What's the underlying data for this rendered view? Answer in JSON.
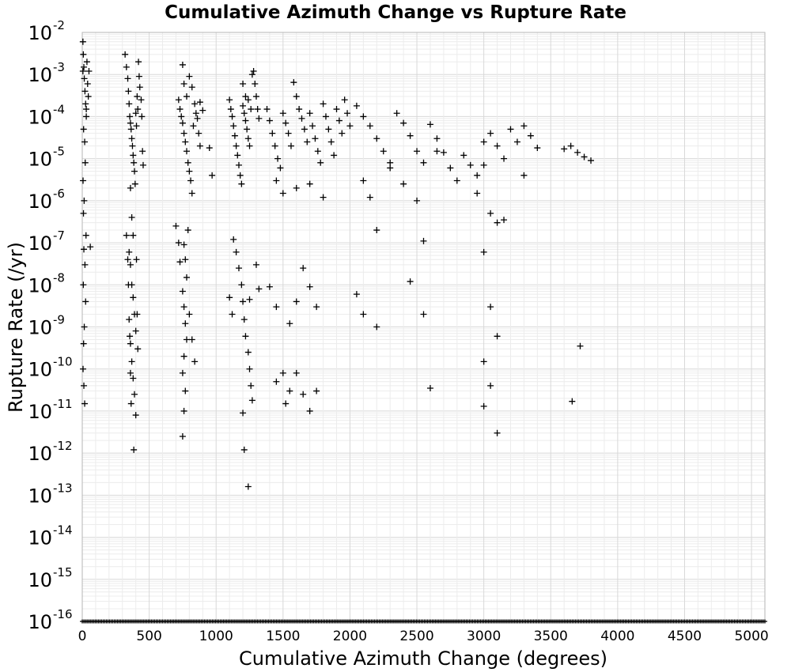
{
  "chart_data": {
    "type": "scatter",
    "title": "Cumulative Azimuth Change vs Rupture Rate",
    "xlabel": "Cumulative Azimuth Change (degrees)",
    "ylabel": "Rupture Rate (/yr)",
    "xlim": [
      0,
      5100
    ],
    "ylim": [
      1e-16,
      0.01
    ],
    "y_scale": "log",
    "grid": true,
    "marker": "plus",
    "marker_color": "#000000",
    "x_ticks": [
      "0",
      "500",
      "1000",
      "1500",
      "2000",
      "2500",
      "3000",
      "3500",
      "4000",
      "4500",
      "5000"
    ],
    "y_ticks": [
      {
        "base": "10",
        "exp": "-2"
      },
      {
        "base": "10",
        "exp": "-3"
      },
      {
        "base": "10",
        "exp": "-4"
      },
      {
        "base": "10",
        "exp": "-5"
      },
      {
        "base": "10",
        "exp": "-6"
      },
      {
        "base": "10",
        "exp": "-7"
      },
      {
        "base": "10",
        "exp": "-8"
      },
      {
        "base": "10",
        "exp": "-9"
      },
      {
        "base": "10",
        "exp": "-10"
      },
      {
        "base": "10",
        "exp": "-11"
      },
      {
        "base": "10",
        "exp": "-12"
      },
      {
        "base": "10",
        "exp": "-13"
      },
      {
        "base": "10",
        "exp": "-14"
      },
      {
        "base": "10",
        "exp": "-15"
      },
      {
        "base": "10",
        "exp": "-16"
      }
    ],
    "series": [
      {
        "points": [
          [
            5,
            0.006
          ],
          [
            8,
            0.003
          ],
          [
            12,
            0.0015
          ],
          [
            15,
            0.0008
          ],
          [
            20,
            0.0004
          ],
          [
            25,
            0.0002
          ],
          [
            30,
            0.0001
          ],
          [
            10,
            5e-05
          ],
          [
            18,
            2.5e-05
          ],
          [
            22,
            8e-06
          ],
          [
            6,
            3e-06
          ],
          [
            14,
            1e-06
          ],
          [
            9,
            5e-07
          ],
          [
            28,
            1.5e-07
          ],
          [
            12,
            7e-08
          ],
          [
            20,
            3e-08
          ],
          [
            8,
            1e-08
          ],
          [
            25,
            4e-09
          ],
          [
            15,
            1e-09
          ],
          [
            10,
            4e-10
          ],
          [
            6,
            1e-10
          ],
          [
            12,
            4e-11
          ],
          [
            18,
            1.5e-11
          ],
          [
            5,
            0.0012
          ],
          [
            35,
            0.002
          ],
          [
            40,
            0.0006
          ],
          [
            45,
            0.0003
          ],
          [
            50,
            0.0012
          ],
          [
            30,
            0.00015
          ],
          [
            60,
            8e-08
          ],
          [
            320,
            0.003
          ],
          [
            330,
            0.0015
          ],
          [
            340,
            0.0008
          ],
          [
            345,
            0.0004
          ],
          [
            350,
            0.0002
          ],
          [
            355,
            0.0001
          ],
          [
            360,
            7e-05
          ],
          [
            365,
            5e-05
          ],
          [
            370,
            3e-05
          ],
          [
            375,
            2e-05
          ],
          [
            380,
            1.2e-05
          ],
          [
            385,
            8e-06
          ],
          [
            390,
            5e-06
          ],
          [
            395,
            2.5e-06
          ],
          [
            400,
            0.00012
          ],
          [
            405,
            6e-05
          ],
          [
            410,
            0.0003
          ],
          [
            415,
            0.00015
          ],
          [
            420,
            0.002
          ],
          [
            425,
            0.0009
          ],
          [
            430,
            0.0005
          ],
          [
            440,
            0.00025
          ],
          [
            445,
            0.0001
          ],
          [
            450,
            1.5e-05
          ],
          [
            455,
            7e-06
          ],
          [
            360,
            2e-06
          ],
          [
            370,
            4e-07
          ],
          [
            380,
            1.5e-07
          ],
          [
            350,
            6e-08
          ],
          [
            360,
            3e-08
          ],
          [
            370,
            1e-08
          ],
          [
            380,
            5e-09
          ],
          [
            390,
            2e-09
          ],
          [
            400,
            8e-10
          ],
          [
            360,
            4e-10
          ],
          [
            370,
            1.5e-10
          ],
          [
            380,
            6e-11
          ],
          [
            390,
            2.5e-11
          ],
          [
            400,
            8e-12
          ],
          [
            385,
            1.2e-12
          ],
          [
            330,
            1.5e-07
          ],
          [
            340,
            4e-08
          ],
          [
            345,
            1e-08
          ],
          [
            350,
            1.5e-09
          ],
          [
            355,
            6e-10
          ],
          [
            360,
            8e-11
          ],
          [
            365,
            1.5e-11
          ],
          [
            405,
            4e-08
          ],
          [
            410,
            2e-09
          ],
          [
            415,
            3e-10
          ],
          [
            720,
            0.00025
          ],
          [
            730,
            0.00015
          ],
          [
            740,
            0.0001
          ],
          [
            750,
            7e-05
          ],
          [
            760,
            4e-05
          ],
          [
            770,
            2.5e-05
          ],
          [
            780,
            1.5e-05
          ],
          [
            790,
            8e-06
          ],
          [
            800,
            5e-06
          ],
          [
            810,
            3e-06
          ],
          [
            820,
            1.5e-06
          ],
          [
            830,
            6e-05
          ],
          [
            840,
            0.0002
          ],
          [
            850,
            0.00012
          ],
          [
            860,
            9e-05
          ],
          [
            870,
            4e-05
          ],
          [
            880,
            2e-05
          ],
          [
            750,
            0.0017
          ],
          [
            800,
            0.0009
          ],
          [
            820,
            0.0005
          ],
          [
            760,
            0.0006
          ],
          [
            780,
            0.0003
          ],
          [
            790,
            2e-07
          ],
          [
            760,
            9e-08
          ],
          [
            770,
            4e-08
          ],
          [
            780,
            1.5e-08
          ],
          [
            750,
            7e-09
          ],
          [
            760,
            3e-09
          ],
          [
            770,
            1.2e-09
          ],
          [
            780,
            5e-10
          ],
          [
            760,
            2e-10
          ],
          [
            750,
            8e-11
          ],
          [
            770,
            3e-11
          ],
          [
            760,
            1e-11
          ],
          [
            750,
            2.5e-12
          ],
          [
            800,
            2e-09
          ],
          [
            820,
            5e-10
          ],
          [
            840,
            1.5e-10
          ],
          [
            700,
            2.5e-07
          ],
          [
            720,
            1e-07
          ],
          [
            730,
            3.5e-08
          ],
          [
            880,
            0.00022
          ],
          [
            900,
            0.00014
          ],
          [
            950,
            1.8e-05
          ],
          [
            970,
            4e-06
          ],
          [
            1100,
            0.00025
          ],
          [
            1110,
            0.00015
          ],
          [
            1120,
            0.0001
          ],
          [
            1130,
            6e-05
          ],
          [
            1140,
            3.5e-05
          ],
          [
            1150,
            2e-05
          ],
          [
            1160,
            1.2e-05
          ],
          [
            1170,
            7e-06
          ],
          [
            1180,
            4e-06
          ],
          [
            1190,
            2.5e-06
          ],
          [
            1200,
            0.00018
          ],
          [
            1210,
            0.00012
          ],
          [
            1220,
            8e-05
          ],
          [
            1230,
            5e-05
          ],
          [
            1240,
            3e-05
          ],
          [
            1250,
            2e-05
          ],
          [
            1260,
            0.00015
          ],
          [
            1270,
            0.001
          ],
          [
            1280,
            0.0012
          ],
          [
            1290,
            0.0006
          ],
          [
            1300,
            0.0003
          ],
          [
            1310,
            0.00015
          ],
          [
            1320,
            9e-05
          ],
          [
            1200,
            0.0006
          ],
          [
            1220,
            0.0003
          ],
          [
            1240,
            0.00025
          ],
          [
            1130,
            1.2e-07
          ],
          [
            1150,
            6e-08
          ],
          [
            1170,
            2.5e-08
          ],
          [
            1190,
            1e-08
          ],
          [
            1200,
            4e-09
          ],
          [
            1210,
            1.5e-09
          ],
          [
            1220,
            6e-10
          ],
          [
            1240,
            2.5e-10
          ],
          [
            1250,
            1e-10
          ],
          [
            1260,
            4e-11
          ],
          [
            1270,
            1.8e-11
          ],
          [
            1200,
            9e-12
          ],
          [
            1210,
            1.2e-12
          ],
          [
            1240,
            1.6e-13
          ],
          [
            1100,
            5e-09
          ],
          [
            1120,
            2e-09
          ],
          [
            1250,
            4.5e-09
          ],
          [
            1300,
            3e-08
          ],
          [
            1320,
            8e-09
          ],
          [
            1380,
            0.00015
          ],
          [
            1400,
            8e-05
          ],
          [
            1420,
            4e-05
          ],
          [
            1440,
            2e-05
          ],
          [
            1460,
            1e-05
          ],
          [
            1480,
            6e-06
          ],
          [
            1500,
            0.00012
          ],
          [
            1520,
            7e-05
          ],
          [
            1540,
            4e-05
          ],
          [
            1560,
            2e-05
          ],
          [
            1580,
            0.00065
          ],
          [
            1600,
            0.0003
          ],
          [
            1620,
            0.00015
          ],
          [
            1640,
            9e-05
          ],
          [
            1660,
            5e-05
          ],
          [
            1680,
            2.5e-05
          ],
          [
            1700,
            0.00012
          ],
          [
            1720,
            6e-05
          ],
          [
            1740,
            3e-05
          ],
          [
            1760,
            1.5e-05
          ],
          [
            1780,
            8e-06
          ],
          [
            1800,
            0.0002
          ],
          [
            1820,
            0.0001
          ],
          [
            1840,
            5e-05
          ],
          [
            1860,
            2.5e-05
          ],
          [
            1880,
            1.2e-05
          ],
          [
            1900,
            0.00015
          ],
          [
            1920,
            8e-05
          ],
          [
            1940,
            4e-05
          ],
          [
            1960,
            0.00025
          ],
          [
            1980,
            0.00012
          ],
          [
            2000,
            6e-05
          ],
          [
            1450,
            3e-06
          ],
          [
            1500,
            1.5e-06
          ],
          [
            1600,
            2e-06
          ],
          [
            1700,
            2.5e-06
          ],
          [
            1800,
            1.2e-06
          ],
          [
            1400,
            9e-09
          ],
          [
            1450,
            3e-09
          ],
          [
            1550,
            1.2e-09
          ],
          [
            1600,
            4e-09
          ],
          [
            1650,
            2.5e-08
          ],
          [
            1700,
            9e-09
          ],
          [
            1750,
            3e-09
          ],
          [
            1500,
            8e-11
          ],
          [
            1550,
            3e-11
          ],
          [
            1600,
            8e-11
          ],
          [
            1650,
            2.5e-11
          ],
          [
            1700,
            1e-11
          ],
          [
            1750,
            3e-11
          ],
          [
            1450,
            5e-11
          ],
          [
            1520,
            1.5e-11
          ],
          [
            2050,
            0.00018
          ],
          [
            2100,
            0.0001
          ],
          [
            2150,
            6e-05
          ],
          [
            2200,
            3e-05
          ],
          [
            2250,
            1.5e-05
          ],
          [
            2300,
            8e-06
          ],
          [
            2350,
            0.00012
          ],
          [
            2400,
            7e-05
          ],
          [
            2450,
            3.5e-05
          ],
          [
            2500,
            1.5e-05
          ],
          [
            2550,
            8e-06
          ],
          [
            2600,
            6.5e-05
          ],
          [
            2650,
            3e-05
          ],
          [
            2700,
            1.4e-05
          ],
          [
            2750,
            6e-06
          ],
          [
            2800,
            3e-06
          ],
          [
            2100,
            3e-06
          ],
          [
            2150,
            1.2e-06
          ],
          [
            2200,
            2e-07
          ],
          [
            2300,
            6e-06
          ],
          [
            2400,
            2.5e-06
          ],
          [
            2500,
            1e-06
          ],
          [
            2550,
            1.1e-07
          ],
          [
            2050,
            6e-09
          ],
          [
            2100,
            2e-09
          ],
          [
            2200,
            1e-09
          ],
          [
            2450,
            1.2e-08
          ],
          [
            2550,
            2e-09
          ],
          [
            2600,
            3.5e-11
          ],
          [
            2650,
            1.5e-05
          ],
          [
            2850,
            1.2e-05
          ],
          [
            2900,
            7e-06
          ],
          [
            2950,
            4e-06
          ],
          [
            3000,
            2.5e-05
          ],
          [
            3050,
            4e-05
          ],
          [
            3100,
            2e-05
          ],
          [
            3150,
            1e-05
          ],
          [
            3200,
            5e-05
          ],
          [
            3250,
            2.5e-05
          ],
          [
            3300,
            6e-05
          ],
          [
            3350,
            3.5e-05
          ],
          [
            3400,
            1.8e-05
          ],
          [
            2950,
            1.5e-06
          ],
          [
            3000,
            7e-06
          ],
          [
            3050,
            5e-07
          ],
          [
            3100,
            3e-07
          ],
          [
            3150,
            3.5e-07
          ],
          [
            3000,
            6e-08
          ],
          [
            3050,
            3e-09
          ],
          [
            3100,
            6e-10
          ],
          [
            3000,
            1.5e-10
          ],
          [
            3050,
            4e-11
          ],
          [
            3000,
            1.3e-11
          ],
          [
            3100,
            3e-12
          ],
          [
            3600,
            1.7e-05
          ],
          [
            3650,
            2e-05
          ],
          [
            3700,
            1.4e-05
          ],
          [
            3750,
            1.1e-05
          ],
          [
            3800,
            9e-06
          ],
          [
            3720,
            3.5e-10
          ],
          [
            3660,
            1.7e-11
          ],
          [
            3300,
            4e-06
          ]
        ]
      }
    ]
  }
}
